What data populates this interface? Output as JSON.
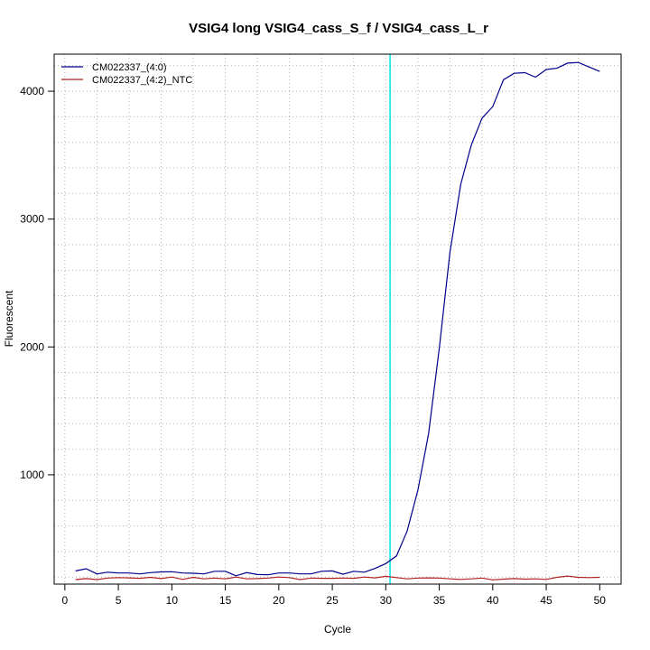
{
  "chart_data": {
    "type": "line",
    "title": "VSIG4 long VSIG4_cass_S_f / VSIG4_cass_L_r",
    "xlabel": "Cycle",
    "ylabel": "Fluorescent",
    "xlim": [
      -1,
      52
    ],
    "ylim": [
      145,
      4290
    ],
    "x_ticks": [
      0,
      5,
      10,
      15,
      20,
      25,
      30,
      35,
      40,
      45,
      50
    ],
    "y_ticks": [
      1000,
      2000,
      3000,
      4000
    ],
    "grid": true,
    "legend_position": "top-left",
    "threshold_cycle": 30.4,
    "threshold_color": "#00e5ee",
    "x": [
      1,
      2,
      3,
      4,
      5,
      6,
      7,
      8,
      9,
      10,
      11,
      12,
      13,
      14,
      15,
      16,
      17,
      18,
      19,
      20,
      21,
      22,
      23,
      24,
      25,
      26,
      27,
      28,
      29,
      30,
      31,
      32,
      33,
      34,
      35,
      36,
      37,
      38,
      39,
      40,
      41,
      42,
      43,
      44,
      45,
      46,
      47,
      48,
      49,
      50
    ],
    "series": [
      {
        "name": "CM022337_(4:0)",
        "color": "#00008b",
        "values": [
          248,
          265,
          225,
          238,
          232,
          232,
          225,
          235,
          240,
          242,
          232,
          230,
          225,
          245,
          245,
          210,
          235,
          220,
          218,
          232,
          232,
          225,
          225,
          245,
          248,
          222,
          245,
          238,
          268,
          305,
          365,
          560,
          880,
          1320,
          1990,
          2740,
          3270,
          3580,
          3790,
          3880,
          4090,
          4140,
          4145,
          4110,
          4170,
          4180,
          4220,
          4225,
          4190,
          4155
        ]
      },
      {
        "name": "CM022337_(4:2)_NTC",
        "color": "#b22222",
        "values": [
          180,
          188,
          180,
          192,
          196,
          194,
          190,
          198,
          188,
          200,
          182,
          198,
          186,
          192,
          186,
          200,
          186,
          188,
          192,
          200,
          196,
          180,
          192,
          190,
          190,
          192,
          190,
          200,
          194,
          206,
          196,
          186,
          192,
          194,
          192,
          186,
          182,
          186,
          192,
          178,
          184,
          188,
          184,
          186,
          182,
          198,
          208,
          198,
          196,
          198
        ]
      }
    ]
  }
}
